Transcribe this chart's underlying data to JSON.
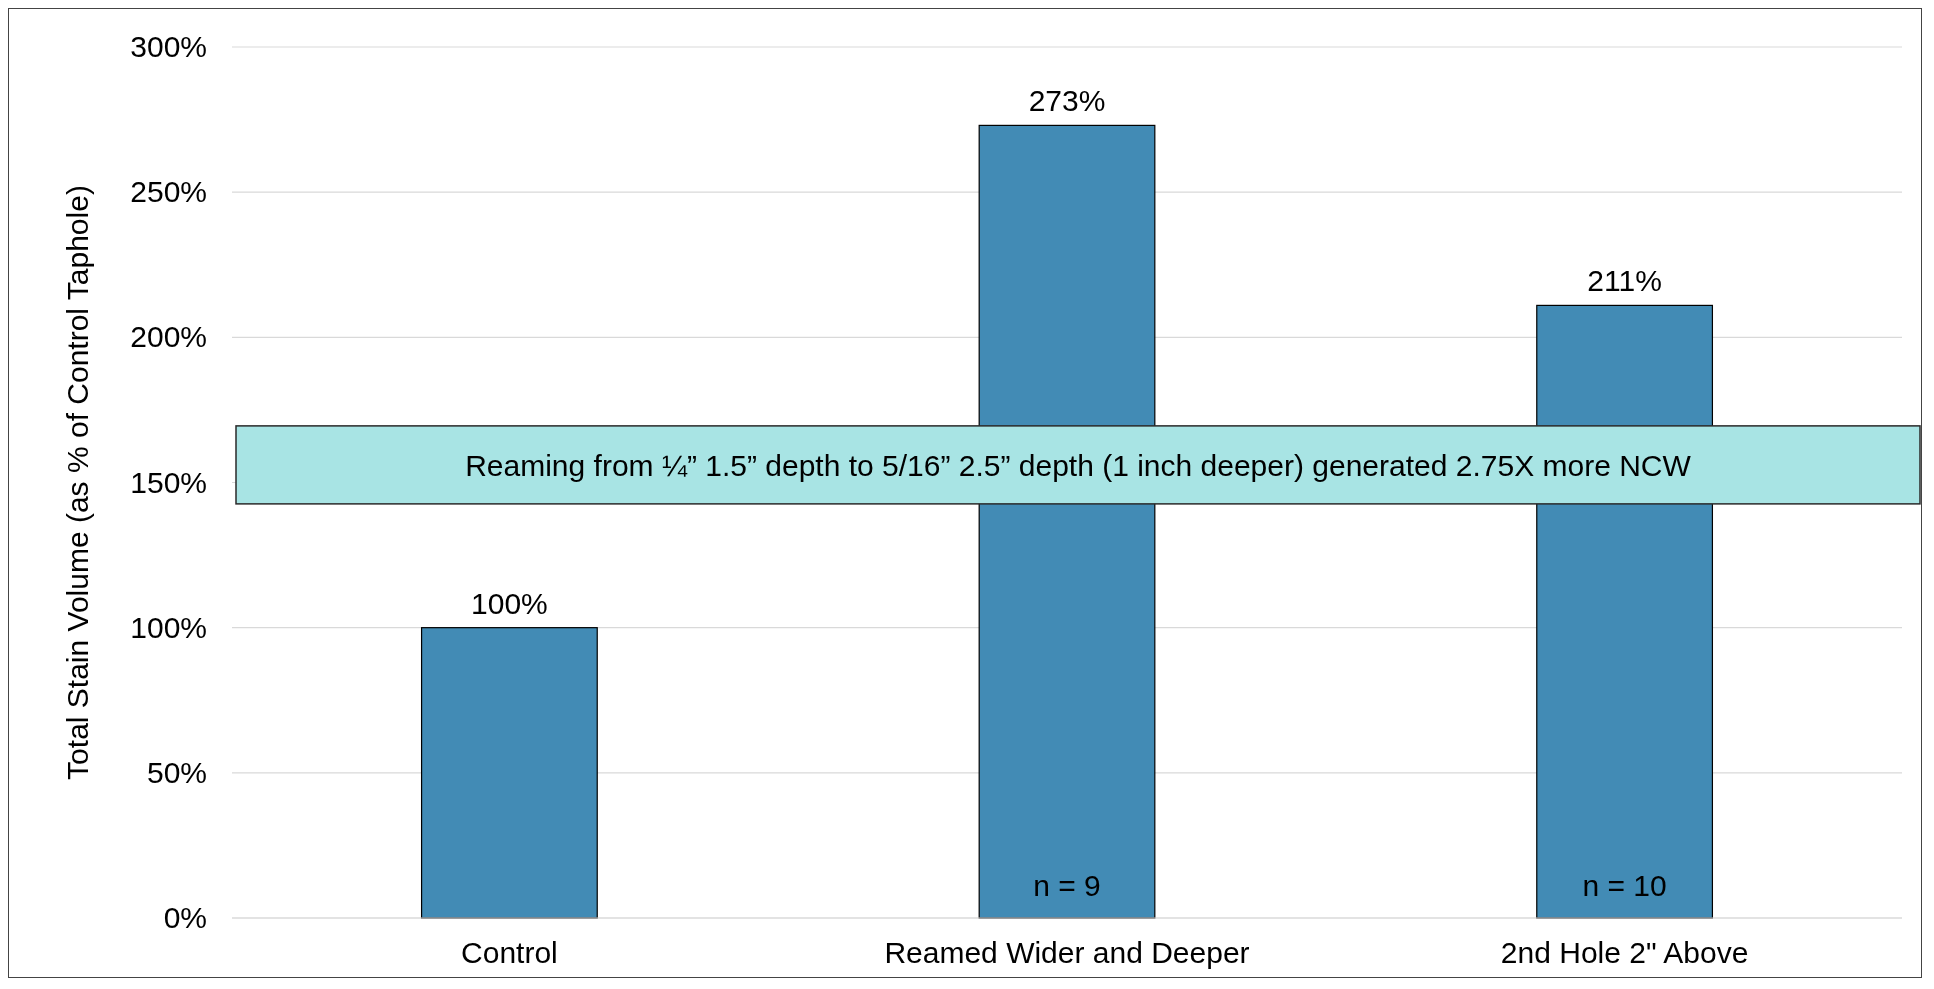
{
  "chart_data": {
    "type": "bar",
    "ylabel": "Total Stain Volume (as % of Control Taphole)",
    "categories": [
      "Control",
      "Reamed Wider and Deeper",
      "2nd Hole 2\" Above"
    ],
    "values": [
      100,
      273,
      211
    ],
    "color": "#428bb5",
    "value_labels": [
      "100%",
      "273%",
      "211%"
    ],
    "ylim": [
      0,
      300
    ],
    "yticks": [
      {
        "value": 0,
        "label": "0%"
      },
      {
        "value": 50,
        "label": "50%"
      },
      {
        "value": 100,
        "label": "100%"
      },
      {
        "value": 150,
        "label": "150%"
      },
      {
        "value": 200,
        "label": "200%"
      },
      {
        "value": 250,
        "label": "250%"
      },
      {
        "value": 300,
        "label": "300%"
      }
    ],
    "grid": "y",
    "annotations": [
      "Reaming from ¼” 1.5” depth to 5/16” 2.5” depth (1 inch deeper) generated 2.75X more NCW",
      "n = 9",
      "n = 10"
    ]
  }
}
